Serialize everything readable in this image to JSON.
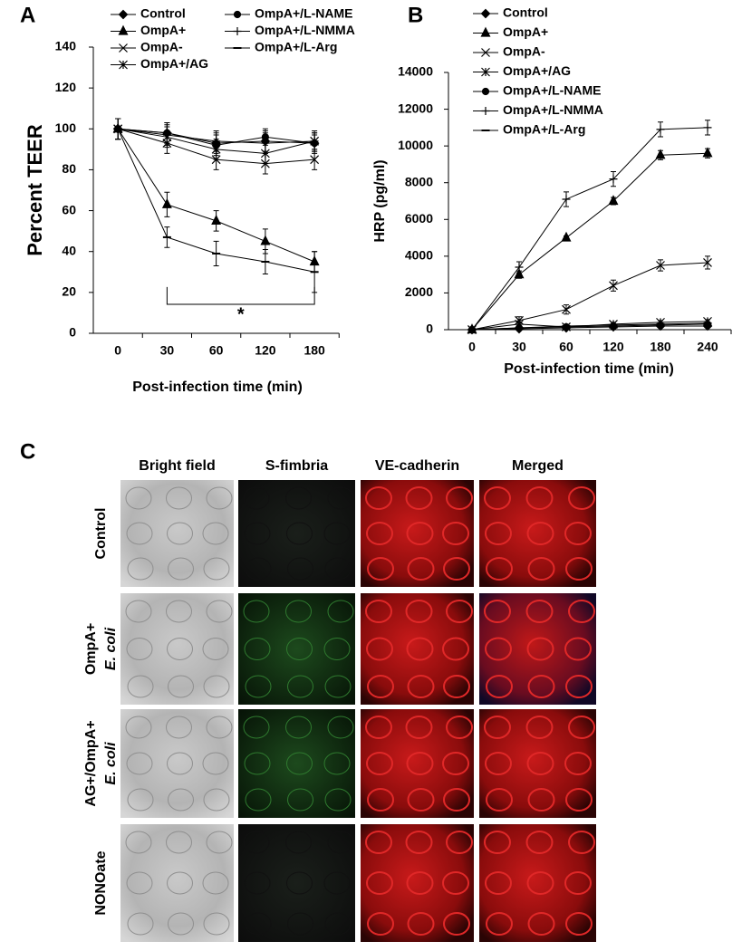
{
  "chart_data": [
    {
      "type": "line",
      "panel": "A",
      "ylabel": "Percent TEER",
      "xlabel": "Post-infection time (min)",
      "categories": [
        "0",
        "30",
        "60",
        "120",
        "180"
      ],
      "ylim": [
        0,
        140
      ],
      "yticks": [
        0,
        20,
        40,
        60,
        80,
        100,
        120,
        140
      ],
      "annotation": "*",
      "series": [
        {
          "name": "Control",
          "color": "#000000",
          "marker": "diamond",
          "values": [
            100,
            98,
            93,
            94,
            93
          ],
          "errors": [
            5,
            5,
            5,
            5,
            5
          ]
        },
        {
          "name": "OmpA+",
          "color": "#000000",
          "marker": "triangle",
          "values": [
            100,
            63,
            55,
            45,
            35
          ],
          "errors": [
            5,
            6,
            5,
            6,
            5
          ]
        },
        {
          "name": "OmpA-",
          "color": "#000000",
          "marker": "x",
          "values": [
            100,
            93,
            85,
            83,
            85
          ],
          "errors": [
            5,
            5,
            5,
            5,
            5
          ]
        },
        {
          "name": "OmpA+/AG",
          "color": "#000000",
          "marker": "star",
          "values": [
            100,
            96,
            90,
            88,
            94
          ],
          "errors": [
            5,
            5,
            5,
            5,
            5
          ]
        },
        {
          "name": "OmpA+/L-NAME",
          "color": "#000000",
          "marker": "circle",
          "values": [
            100,
            98,
            92,
            96,
            93
          ],
          "errors": [
            5,
            5,
            5,
            4,
            4
          ]
        },
        {
          "name": "OmpA+/L-NMMA",
          "color": "#000000",
          "marker": "plus",
          "values": [
            100,
            97,
            94,
            93,
            94
          ],
          "errors": [
            5,
            5,
            5,
            5,
            4
          ]
        },
        {
          "name": "OmpA+/L-Arg",
          "color": "#000000",
          "marker": "dash",
          "values": [
            100,
            47,
            39,
            35,
            30
          ],
          "errors": [
            5,
            5,
            6,
            6,
            10
          ]
        }
      ]
    },
    {
      "type": "line",
      "panel": "B",
      "ylabel": "HRP (pg/ml)",
      "xlabel": "Post-infection time (min)",
      "categories": [
        "0",
        "30",
        "60",
        "120",
        "180",
        "240"
      ],
      "ylim": [
        0,
        14000
      ],
      "yticks": [
        0,
        2000,
        4000,
        6000,
        8000,
        10000,
        12000,
        14000
      ],
      "series": [
        {
          "name": "Control",
          "color": "#000000",
          "marker": "diamond",
          "values": [
            0,
            50,
            100,
            150,
            200,
            200
          ],
          "errors": [
            0,
            50,
            50,
            50,
            50,
            50
          ]
        },
        {
          "name": "OmpA+",
          "color": "#000000",
          "marker": "triangle",
          "values": [
            0,
            3000,
            5000,
            7000,
            9500,
            9600
          ],
          "errors": [
            0,
            200,
            100,
            200,
            250,
            250
          ]
        },
        {
          "name": "OmpA-",
          "color": "#000000",
          "marker": "x",
          "values": [
            0,
            500,
            1100,
            2400,
            3500,
            3650
          ],
          "errors": [
            0,
            200,
            250,
            300,
            300,
            350
          ]
        },
        {
          "name": "OmpA+/AG",
          "color": "#000000",
          "marker": "star",
          "values": [
            0,
            300,
            150,
            300,
            400,
            450
          ],
          "errors": [
            0,
            100,
            50,
            100,
            100,
            100
          ]
        },
        {
          "name": "OmpA+/L-NAME",
          "color": "#000000",
          "marker": "circle",
          "values": [
            0,
            100,
            150,
            200,
            250,
            300
          ],
          "errors": [
            0,
            50,
            50,
            50,
            50,
            50
          ]
        },
        {
          "name": "OmpA+/L-NMMA",
          "color": "#000000",
          "marker": "plus",
          "values": [
            0,
            3400,
            7100,
            8200,
            10900,
            11000
          ],
          "errors": [
            0,
            300,
            400,
            400,
            400,
            400
          ]
        },
        {
          "name": "OmpA+/L-Arg",
          "color": "#000000",
          "marker": "dash",
          "values": [
            0,
            100,
            200,
            250,
            300,
            350
          ],
          "errors": [
            0,
            50,
            50,
            50,
            50,
            50
          ]
        }
      ]
    }
  ],
  "panel_c": {
    "label": "C",
    "columns": [
      "Bright field",
      "S-fimbria",
      "VE-cadherin",
      "Merged"
    ],
    "rows": [
      {
        "lines": [
          "Control"
        ]
      },
      {
        "lines": [
          "OmpA+",
          "E. coli"
        ]
      },
      {
        "lines": [
          "AG+/OmpA+",
          "E. coli"
        ]
      },
      {
        "lines": [
          "NONOate"
        ]
      }
    ]
  }
}
